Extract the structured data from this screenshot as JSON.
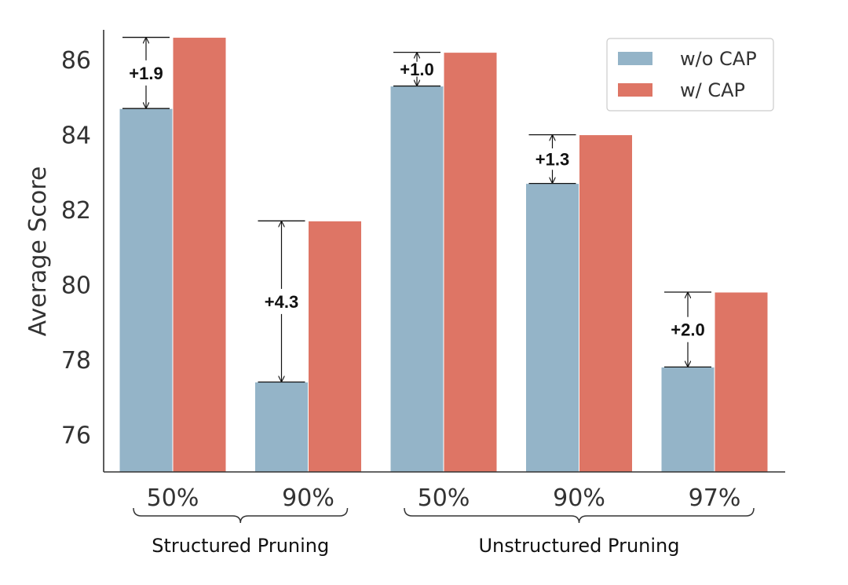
{
  "chart_data": {
    "type": "bar",
    "ylabel": "Average Score",
    "ylim": [
      75.0,
      86.8
    ],
    "yticks": [
      "76",
      "78",
      "80",
      "82",
      "84",
      "86"
    ],
    "categories": [
      "50%",
      "90%",
      "50%",
      "90%",
      "97%"
    ],
    "groups": [
      {
        "label": "Structured Pruning",
        "categories": [
          0,
          1
        ]
      },
      {
        "label": "Unstructured Pruning",
        "categories": [
          2,
          3,
          4
        ]
      }
    ],
    "series": [
      {
        "name": "w/o CAP",
        "color": "#94b4c8",
        "values": [
          84.7,
          77.4,
          85.3,
          82.7,
          77.8
        ]
      },
      {
        "name": "w/ CAP",
        "color": "#de7565",
        "values": [
          86.6,
          81.7,
          86.2,
          84.0,
          79.8
        ]
      }
    ],
    "gains": [
      "+1.9",
      "+4.3",
      "+1.0",
      "+1.3",
      "+2.0"
    ],
    "legend_position": "top-right",
    "grid": false
  }
}
